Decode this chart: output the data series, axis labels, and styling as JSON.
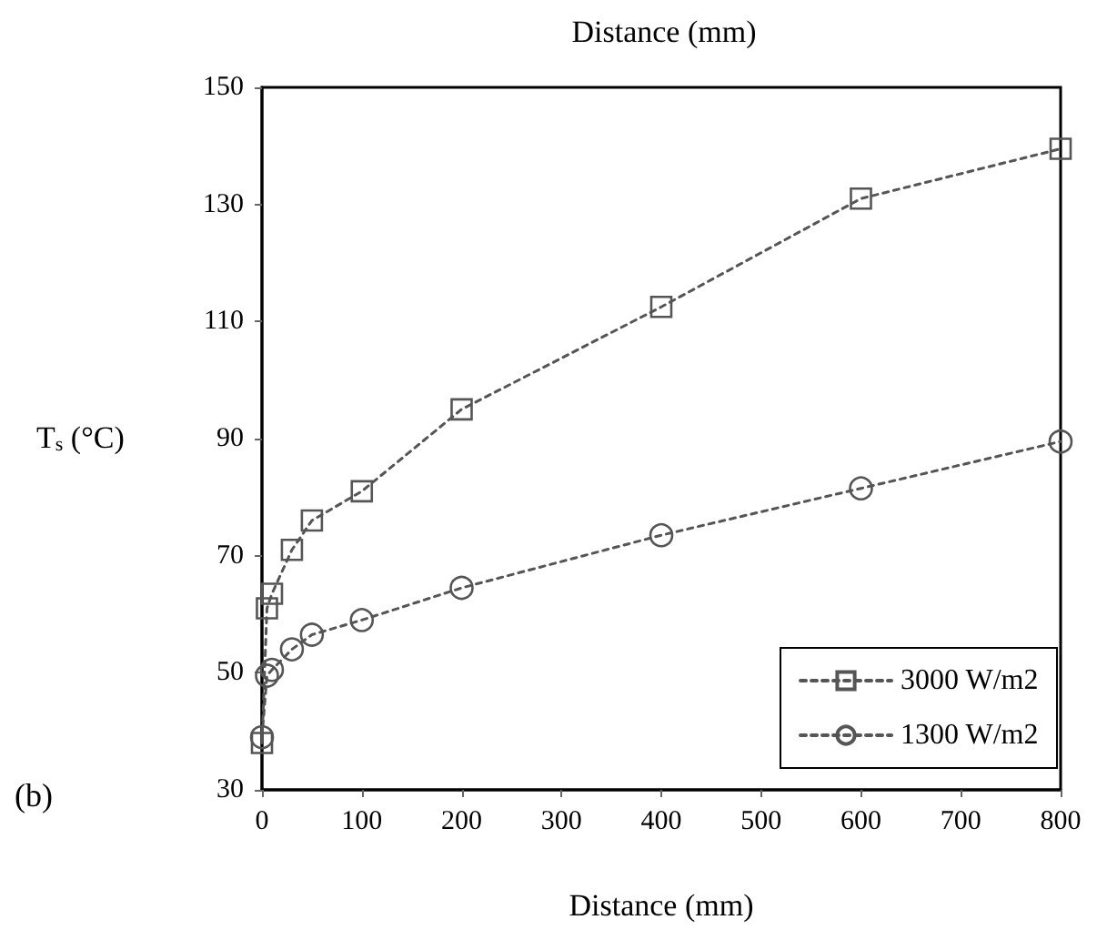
{
  "chart_data": {
    "type": "line",
    "title": "Distance (mm)",
    "xlabel": "Distance (mm)",
    "ylabel": "T$_{s}$ (°C)",
    "annotations": [
      "(b)"
    ],
    "series": [
      {
        "name": "3000 W/m2",
        "color": "#555555",
        "marker": "square",
        "x": [
          0,
          5,
          10,
          30,
          50,
          100,
          200,
          400,
          600,
          800
        ],
        "values": [
          38,
          61,
          63.5,
          71,
          76,
          81,
          95,
          112.5,
          131,
          139.5
        ]
      },
      {
        "name": "1300 W/m2",
        "color": "#555555",
        "marker": "circle",
        "x": [
          0,
          5,
          10,
          30,
          50,
          100,
          200,
          400,
          600,
          800
        ],
        "values": [
          39,
          49.5,
          50.5,
          54,
          56.5,
          59,
          64.5,
          73.5,
          81.5,
          89.5
        ]
      }
    ],
    "xlim": [
      0,
      800
    ],
    "xticks": [
      0,
      100,
      200,
      300,
      400,
      500,
      600,
      700,
      800
    ],
    "ylim": [
      30,
      150
    ],
    "yticks": [
      30,
      50,
      70,
      90,
      110,
      130,
      150
    ],
    "grid": false,
    "legend": "bottom right",
    "line_style": "dashed"
  }
}
